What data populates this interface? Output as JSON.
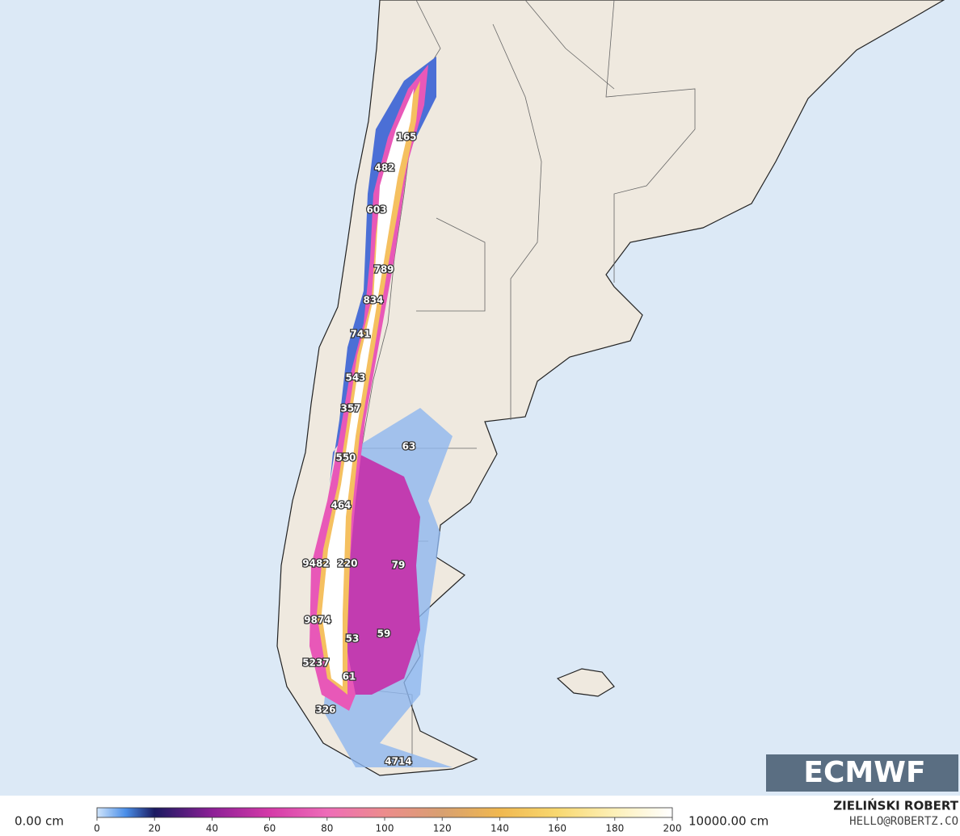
{
  "map": {
    "labels": [
      "165",
      "482",
      "603",
      "789",
      "834",
      "741",
      "543",
      "357",
      "63",
      "550",
      "464",
      "9482",
      "220",
      "79",
      "9874",
      "53",
      "59",
      "5237",
      "61",
      "326",
      "4714"
    ],
    "logo": "ECMWF"
  },
  "colorbar": {
    "lim": [
      0,
      200
    ],
    "ticks": [
      0,
      20,
      40,
      60,
      80,
      100,
      120,
      140,
      160,
      180,
      200
    ],
    "min_label": "0.00 cm",
    "max_label": "10000.00 cm"
  },
  "credit": {
    "author": "ZIELIŃSKI ROBERT",
    "contact": "HELLO@ROBERTZ.CO"
  }
}
